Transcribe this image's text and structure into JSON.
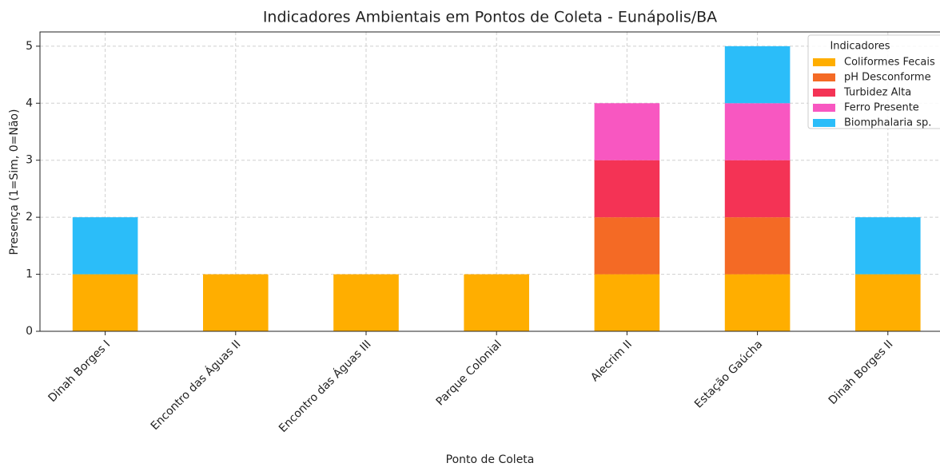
{
  "chart_data": {
    "type": "stacked_bar",
    "title": "Indicadores Ambientais em Pontos de Coleta - Eunápolis/BA",
    "x_label": "Ponto de Coleta",
    "y_label": "Presença (1=Sim, 0=Não)",
    "categories": [
      "Dinah Borges I",
      "Encontro das Águas II",
      "Encontro das Águas III",
      "Parque Colonial",
      "Alecrim II",
      "Estação Gaúcha",
      "Dinah Borges II"
    ],
    "series": [
      {
        "name": "Coliformes Fecais",
        "color": "#ffae00",
        "values": [
          1,
          1,
          1,
          1,
          1,
          1,
          1
        ]
      },
      {
        "name": "pH Desconforme",
        "color": "#f46a25",
        "values": [
          0,
          0,
          0,
          0,
          1,
          1,
          0
        ]
      },
      {
        "name": "Turbidez Alta",
        "color": "#f43355",
        "values": [
          0,
          0,
          0,
          0,
          1,
          1,
          0
        ]
      },
      {
        "name": "Ferro Presente",
        "color": "#f857c1",
        "values": [
          0,
          0,
          0,
          0,
          1,
          1,
          0
        ]
      },
      {
        "name": "Biomphalaria sp.",
        "color": "#2bbdf9",
        "values": [
          1,
          0,
          0,
          0,
          0,
          1,
          1
        ]
      }
    ],
    "legend_title": "Indicadores",
    "legend": "upper right",
    "ylim": [
      0,
      5.25
    ],
    "yticks": [
      0,
      1,
      2,
      3,
      4,
      5
    ],
    "grid": true
  }
}
